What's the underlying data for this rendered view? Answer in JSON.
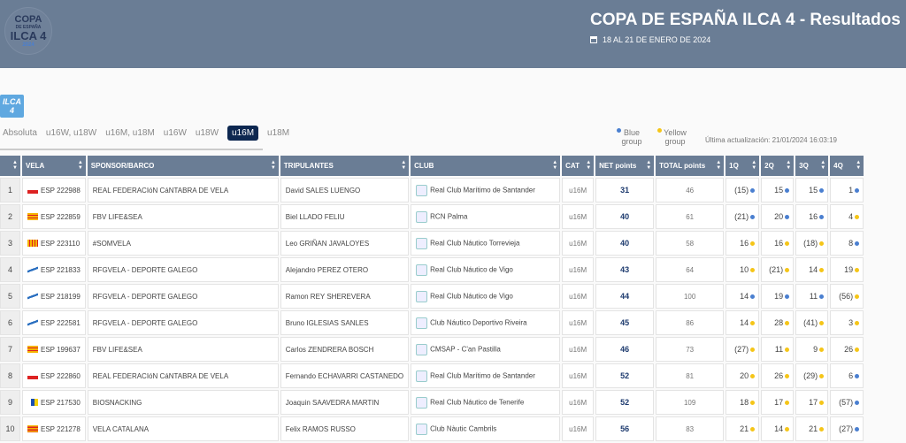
{
  "header": {
    "title": "COPA DE ESPAÑA ILCA 4 - Resultados",
    "date": "18 AL 21 DE ENERO DE 2024",
    "logo_text": "COPA DE ESPAÑA ILCA 4 2024",
    "background": "#6a7d95"
  },
  "class_badge": "ILCA 4",
  "tabs": [
    {
      "label": "Absoluta"
    },
    {
      "label": "u16W, u18W"
    },
    {
      "label": "u16M, u18M"
    },
    {
      "label": "u16W"
    },
    {
      "label": "u18W"
    },
    {
      "label": "u16M",
      "active": true
    },
    {
      "label": "u18M"
    }
  ],
  "legend": {
    "blue": "Blue group",
    "yellow": "Yellow group",
    "blue_color": "#4a7fd0",
    "yellow_color": "#f5c518"
  },
  "last_update": "Última actualización: 21/01/2024 16:03:19",
  "columns": [
    "",
    "VELA",
    "SPONSOR/BARCO",
    "TRIPULANTES",
    "CLUB",
    "CAT",
    "NET points",
    "TOTAL points",
    "1Q",
    "2Q",
    "3Q",
    "4Q"
  ],
  "rows": [
    {
      "rank": "1",
      "vela": "ESP 222988",
      "flag": "cantabria",
      "sponsor": "REAL FEDERACIóN CáNTABRA DE VELA",
      "crew": "David SALES LUENGO",
      "club": "Real Club Marítimo de Santander",
      "cat": "u16M",
      "net": "31",
      "total": "46",
      "q": [
        [
          "(15)",
          "b"
        ],
        [
          "15",
          "b"
        ],
        [
          "15",
          "b"
        ],
        [
          "1",
          "b"
        ]
      ]
    },
    {
      "rank": "2",
      "vela": "ESP 222859",
      "flag": "baleares",
      "sponsor": "FBV LIFE&SEA",
      "crew": "Biel LLADO FELIU",
      "club": "RCN Palma",
      "cat": "u16M",
      "net": "40",
      "total": "61",
      "q": [
        [
          "(21)",
          "b"
        ],
        [
          "20",
          "b"
        ],
        [
          "16",
          "b"
        ],
        [
          "4",
          "y"
        ]
      ]
    },
    {
      "rank": "3",
      "vela": "ESP 223110",
      "flag": "valencia",
      "sponsor": "#SOMVELA",
      "crew": "Leo GRIÑAN JAVALOYES",
      "club": "Real Club Náutico Torrevieja",
      "cat": "u16M",
      "net": "40",
      "total": "58",
      "q": [
        [
          "16",
          "y"
        ],
        [
          "16",
          "y"
        ],
        [
          "(18)",
          "y"
        ],
        [
          "8",
          "b"
        ]
      ]
    },
    {
      "rank": "4",
      "vela": "ESP 221833",
      "flag": "galicia",
      "sponsor": "RFGVELA - DEPORTE GALEGO",
      "crew": "Alejandro PEREZ OTERO",
      "club": "Real Club Náutico de Vigo",
      "cat": "u16M",
      "net": "43",
      "total": "64",
      "q": [
        [
          "10",
          "y"
        ],
        [
          "(21)",
          "y"
        ],
        [
          "14",
          "y"
        ],
        [
          "19",
          "y"
        ]
      ]
    },
    {
      "rank": "5",
      "vela": "ESP 218199",
      "flag": "galicia",
      "sponsor": "RFGVELA - DEPORTE GALEGO",
      "crew": "Ramon REY SHEREVERA",
      "club": "Real Club Náutico de Vigo",
      "cat": "u16M",
      "net": "44",
      "total": "100",
      "q": [
        [
          "14",
          "b"
        ],
        [
          "19",
          "b"
        ],
        [
          "11",
          "b"
        ],
        [
          "(56)",
          "y"
        ]
      ]
    },
    {
      "rank": "6",
      "vela": "ESP 222581",
      "flag": "galicia",
      "sponsor": "RFGVELA - DEPORTE GALEGO",
      "crew": "Bruno IGLESIAS SANLES",
      "club": "Club Náutico Deportivo Riveira",
      "cat": "u16M",
      "net": "45",
      "total": "86",
      "q": [
        [
          "14",
          "y"
        ],
        [
          "28",
          "y"
        ],
        [
          "(41)",
          "y"
        ],
        [
          "3",
          "y"
        ]
      ]
    },
    {
      "rank": "7",
      "vela": "ESP 199637",
      "flag": "baleares",
      "sponsor": "FBV LIFE&SEA",
      "crew": "Carlos ZENDRERA BOSCH",
      "club": "CMSAP - C'an Pastilla",
      "cat": "u16M",
      "net": "46",
      "total": "73",
      "q": [
        [
          "(27)",
          "y"
        ],
        [
          "11",
          "y"
        ],
        [
          "9",
          "y"
        ],
        [
          "26",
          "y"
        ]
      ]
    },
    {
      "rank": "8",
      "vela": "ESP 222860",
      "flag": "cantabria",
      "sponsor": "REAL FEDERACIóN CáNTABRA DE VELA",
      "crew": "Fernando ECHAVARRI CASTANEDO",
      "club": "Real Club Marítimo de Santander",
      "cat": "u16M",
      "net": "52",
      "total": "81",
      "q": [
        [
          "20",
          "y"
        ],
        [
          "26",
          "y"
        ],
        [
          "(29)",
          "y"
        ],
        [
          "6",
          "b"
        ]
      ]
    },
    {
      "rank": "9",
      "vela": "ESP 217530",
      "flag": "canarias",
      "sponsor": "BIOSNACKING",
      "crew": "Joaquin SAAVEDRA MARTIN",
      "club": "Real Club Náutico de Tenerife",
      "cat": "u16M",
      "net": "52",
      "total": "109",
      "q": [
        [
          "18",
          "y"
        ],
        [
          "17",
          "y"
        ],
        [
          "17",
          "y"
        ],
        [
          "(57)",
          "b"
        ]
      ]
    },
    {
      "rank": "10",
      "vela": "ESP 221278",
      "flag": "cataluna",
      "sponsor": "VELA CATALANA",
      "crew": "Felix RAMOS RUSSO",
      "club": "Club Nàutic Cambrils",
      "cat": "u16M",
      "net": "56",
      "total": "83",
      "q": [
        [
          "21",
          "y"
        ],
        [
          "14",
          "y"
        ],
        [
          "21",
          "y"
        ],
        [
          "(27)",
          "b"
        ]
      ]
    }
  ]
}
